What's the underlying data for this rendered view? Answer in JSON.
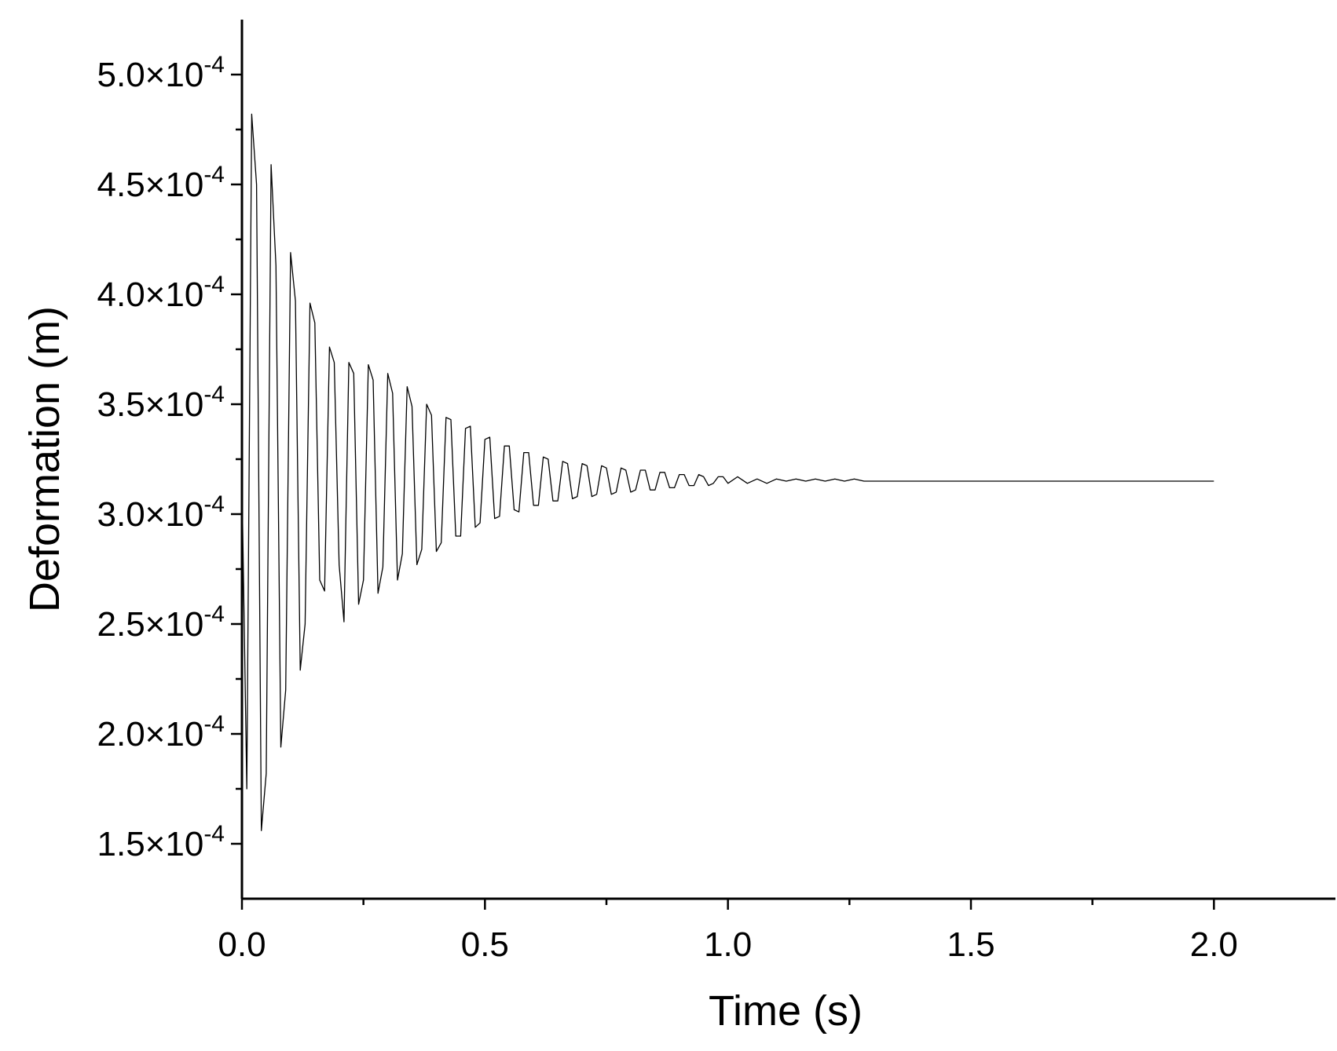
{
  "chart_data": {
    "type": "line",
    "title": "",
    "xlabel": "Time (s)",
    "ylabel": "Deformation (m)",
    "xlim": [
      0,
      2.25
    ],
    "ylim": [
      0.000125,
      0.000525
    ],
    "x_major_ticks": [
      0.0,
      0.5,
      1.0,
      1.5,
      2.0
    ],
    "x_minor_ticks": [
      0.25,
      0.75,
      1.25,
      1.75
    ],
    "x_tick_labels": [
      "0.0",
      "0.5",
      "1.0",
      "1.5",
      "2.0"
    ],
    "y_major_ticks": [
      0.00015,
      0.0002,
      0.00025,
      0.0003,
      0.00035,
      0.0004,
      0.00045,
      0.0005
    ],
    "y_minor_ticks": [
      0.000175,
      0.000225,
      0.000275,
      0.000325,
      0.000375,
      0.000425,
      0.000475
    ],
    "y_tick_labels": [
      {
        "mantissa": "1.5×10",
        "exponent": "-4"
      },
      {
        "mantissa": "2.0×10",
        "exponent": "-4"
      },
      {
        "mantissa": "2.5×10",
        "exponent": "-4"
      },
      {
        "mantissa": "3.0×10",
        "exponent": "-4"
      },
      {
        "mantissa": "3.5×10",
        "exponent": "-4"
      },
      {
        "mantissa": "4.0×10",
        "exponent": "-4"
      },
      {
        "mantissa": "4.5×10",
        "exponent": "-4"
      },
      {
        "mantissa": "5.0×10",
        "exponent": "-4"
      }
    ],
    "grid": false,
    "legend": "none",
    "line_color": "#000000",
    "series": [
      {
        "values": {
          "x": [
            0.0,
            0.01,
            0.02,
            0.03,
            0.04,
            0.05,
            0.06,
            0.07,
            0.08,
            0.09,
            0.1,
            0.11,
            0.12,
            0.13,
            0.14,
            0.15,
            0.16,
            0.17,
            0.18,
            0.19,
            0.2,
            0.21,
            0.22,
            0.23,
            0.24,
            0.25,
            0.26,
            0.27,
            0.28,
            0.29,
            0.3,
            0.31,
            0.32,
            0.33,
            0.34,
            0.35,
            0.36,
            0.37,
            0.38,
            0.39,
            0.4,
            0.41,
            0.42,
            0.43,
            0.44,
            0.45,
            0.46,
            0.47,
            0.48,
            0.49,
            0.5,
            0.51,
            0.52,
            0.53,
            0.54,
            0.55,
            0.56,
            0.57,
            0.58,
            0.59,
            0.6,
            0.61,
            0.62,
            0.63,
            0.64,
            0.65,
            0.66,
            0.67,
            0.68,
            0.69,
            0.7,
            0.71,
            0.72,
            0.73,
            0.74,
            0.75,
            0.76,
            0.77,
            0.78,
            0.79,
            0.8,
            0.81,
            0.82,
            0.83,
            0.84,
            0.85,
            0.86,
            0.87,
            0.88,
            0.89,
            0.9,
            0.91,
            0.92,
            0.93,
            0.94,
            0.95,
            0.96,
            0.97,
            0.98,
            0.99,
            1.0,
            1.02,
            1.04,
            1.06,
            1.08,
            1.1,
            1.12,
            1.14,
            1.16,
            1.18,
            1.2,
            1.22,
            1.24,
            1.26,
            1.28,
            1.3,
            1.32,
            1.34,
            1.36,
            1.38,
            1.4,
            1.45,
            1.5,
            1.55,
            1.6,
            1.7,
            1.8,
            1.9,
            2.0
          ],
          "y": [
            0.000315,
            0.000175,
            0.000482,
            0.00045,
            0.000156,
            0.000182,
            0.000459,
            0.000413,
            0.000194,
            0.00022,
            0.000419,
            0.000397,
            0.000229,
            0.00025,
            0.000396,
            0.000387,
            0.00027,
            0.000265,
            0.000376,
            0.000369,
            0.000277,
            0.000251,
            0.000369,
            0.000364,
            0.000259,
            0.00027,
            0.000368,
            0.000361,
            0.000264,
            0.000276,
            0.000364,
            0.000355,
            0.00027,
            0.000282,
            0.000358,
            0.000349,
            0.000277,
            0.000284,
            0.00035,
            0.000345,
            0.000283,
            0.000287,
            0.000344,
            0.000343,
            0.00029,
            0.00029,
            0.000339,
            0.00034,
            0.000294,
            0.000296,
            0.000334,
            0.000335,
            0.000298,
            0.000299,
            0.000331,
            0.000331,
            0.000302,
            0.000301,
            0.000328,
            0.000328,
            0.000304,
            0.000304,
            0.000326,
            0.000325,
            0.000306,
            0.000306,
            0.000324,
            0.000323,
            0.000307,
            0.000308,
            0.000323,
            0.000322,
            0.000308,
            0.000309,
            0.000322,
            0.000321,
            0.000309,
            0.00031,
            0.000321,
            0.00032,
            0.00031,
            0.000311,
            0.00032,
            0.00032,
            0.000311,
            0.000311,
            0.000319,
            0.000319,
            0.000312,
            0.000312,
            0.000318,
            0.000318,
            0.000313,
            0.000313,
            0.000318,
            0.000317,
            0.000313,
            0.000314,
            0.000317,
            0.000317,
            0.000314,
            0.000317,
            0.000314,
            0.000316,
            0.000314,
            0.000316,
            0.000315,
            0.000316,
            0.000315,
            0.000316,
            0.000315,
            0.000316,
            0.000315,
            0.000316,
            0.000315,
            0.000315,
            0.000315,
            0.000315,
            0.000315,
            0.000315,
            0.000315,
            0.000315,
            0.000315,
            0.000315,
            0.000315,
            0.000315,
            0.000315,
            0.000315,
            0.000315
          ]
        }
      }
    ]
  }
}
